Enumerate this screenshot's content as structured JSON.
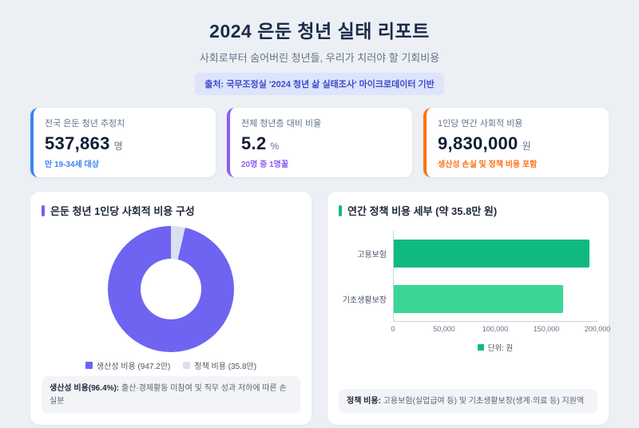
{
  "header": {
    "title": "2024 은둔 청년 실태 리포트",
    "subtitle": "사회로부터 숨어버린 청년들, 우리가 치러야 할 기회비용",
    "source_badge": "출처: 국무조정실 '2024 청년 삶 실태조사' 마이크로데이터 기반"
  },
  "stat_cards": [
    {
      "label": "전국 은둔 청년 추정치",
      "value": "537,863",
      "unit": "명",
      "caption": "만 19-34세 대상",
      "accent": "#3b82f6"
    },
    {
      "label": "전체 청년층 대비 비율",
      "value": "5.2",
      "unit": "%",
      "caption": "20명 중 1명꼴",
      "accent": "#8b5cf6"
    },
    {
      "label": "1인당 연간 사회적 비용",
      "value": "9,830,000",
      "unit": "원",
      "caption": "생산성 손실 및 정책 비용 포함",
      "accent": "#f97316"
    }
  ],
  "donut_panel": {
    "title": "은둔 청년 1인당 사회적 비용 구성",
    "accent": "#6f63f2",
    "note_strong": "생산성 비용(96.4%):",
    "note_text": "출산·경제활동 미참여 및 직무 성과 저하에 따른 손실분"
  },
  "bar_panel": {
    "title": "연간 정책 비용 세부 (약 35.8만 원)",
    "accent": "#10b981",
    "unit_label": "단위: 원",
    "note_strong": "정책 비용:",
    "note_text": "고용보험(실업급여 등) 및 기초생활보장(생계·의료 등) 지원액"
  },
  "chart_data": [
    {
      "type": "pie",
      "subtype": "donut",
      "title": "은둔 청년 1인당 사회적 비용 구성",
      "labels": [
        "생산성 비용 (947.2만)",
        "정책 비용 (35.8만)"
      ],
      "values": [
        9472000,
        358000
      ],
      "percentages": [
        96.4,
        3.6
      ],
      "colors": [
        "#6f63f2",
        "#dbe0f0"
      ],
      "legend_position": "bottom"
    },
    {
      "type": "bar",
      "orientation": "horizontal",
      "title": "연간 정책 비용 세부 (약 35.8만 원)",
      "categories": [
        "고용보험",
        "기초생활보장"
      ],
      "values": [
        192000,
        166000
      ],
      "colors": [
        "#10b981",
        "#3bd695"
      ],
      "xlim": [
        0,
        200000
      ],
      "xticks": [
        "0",
        "50,000",
        "100,000",
        "150,000",
        "200,000"
      ],
      "unit": "원",
      "grid": false
    }
  ]
}
